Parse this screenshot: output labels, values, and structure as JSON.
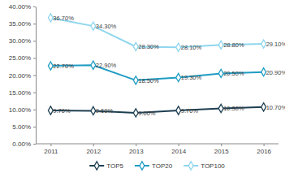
{
  "chart_data": {
    "type": "line",
    "categories": [
      "2011",
      "2012",
      "2013",
      "2014",
      "2015",
      "2016"
    ],
    "series": [
      {
        "name": "TOP5",
        "color": "#1d3f52",
        "marker": "diamond",
        "values": [
          9.7,
          9.6,
          9.0,
          9.7,
          10.3,
          10.7
        ],
        "value_labels": [
          "9.70%",
          "9.60%",
          "9.00%",
          "9.70%",
          "10.30%",
          "10.70%"
        ]
      },
      {
        "name": "TOP20",
        "color": "#1f9cc4",
        "marker": "diamond",
        "values": [
          22.7,
          22.9,
          18.5,
          19.3,
          20.5,
          20.9
        ],
        "value_labels": [
          "22.70%",
          "22.90%",
          "18.50%",
          "19.30%",
          "20.50%",
          "20.90%"
        ]
      },
      {
        "name": "TOP100",
        "color": "#8fd6ee",
        "marker": "diamond",
        "values": [
          36.7,
          34.3,
          28.3,
          28.1,
          28.8,
          29.1
        ],
        "value_labels": [
          "36.70%",
          "34.30%",
          "28.30%",
          "28.10%",
          "28.80%",
          "29.10%"
        ]
      }
    ],
    "ylim": [
      0,
      40
    ],
    "yticks": [
      {
        "value": 0,
        "label": "0.00%"
      },
      {
        "value": 5,
        "label": "5.00%"
      },
      {
        "value": 10,
        "label": "10.00%"
      },
      {
        "value": 15,
        "label": "15.00%"
      },
      {
        "value": 20,
        "label": "20.00%"
      },
      {
        "value": 25,
        "label": "25.00%"
      },
      {
        "value": 30,
        "label": "30.00%"
      },
      {
        "value": 35,
        "label": "35.00%"
      },
      {
        "value": 40,
        "label": "40.00%"
      }
    ],
    "grid": false,
    "legend": "bottom",
    "data_labels": true
  }
}
